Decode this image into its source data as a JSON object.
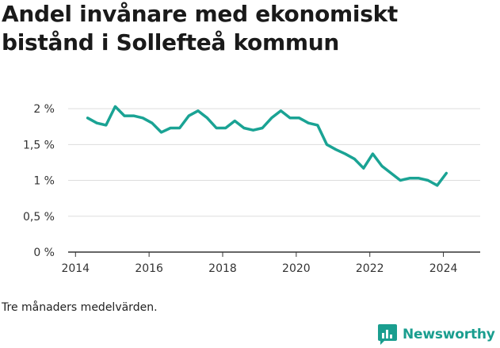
{
  "title": "Andel invånare med ekonomiskt bistånd i Sollefteå kommun",
  "note": "Tre månaders medelvärden.",
  "brand": {
    "name": "Newsworthy",
    "icon": "bar-chart-icon",
    "color": "#1a9e8f"
  },
  "colors": {
    "line": "#1aa394",
    "grid": "#dddddd",
    "axis": "#333333"
  },
  "chart_data": {
    "type": "line",
    "title": "Andel invånare med ekonomiskt bistånd i Sollefteå kommun",
    "xlabel": "",
    "ylabel": "",
    "xlim": [
      2013.8,
      2025.0
    ],
    "ylim": [
      0,
      2.2
    ],
    "x_ticks": [
      2014,
      2016,
      2018,
      2020,
      2022,
      2024
    ],
    "x_tick_labels": [
      "2014",
      "2016",
      "2018",
      "2020",
      "2022",
      "2024"
    ],
    "y_ticks": [
      0,
      0.5,
      1,
      1.5,
      2
    ],
    "y_tick_labels": [
      "0 %",
      "0,5 %",
      "1 %",
      "1,5 %",
      "2 %"
    ],
    "grid": true,
    "series": [
      {
        "x": [
          2014.33,
          2014.58,
          2014.83,
          2015.08,
          2015.33,
          2015.58,
          2015.83,
          2016.08,
          2016.33,
          2016.58,
          2016.83,
          2017.08,
          2017.33,
          2017.58,
          2017.83,
          2018.08,
          2018.33,
          2018.58,
          2018.83,
          2019.08,
          2019.33,
          2019.58,
          2019.83,
          2020.08,
          2020.33,
          2020.58,
          2020.83,
          2021.08,
          2021.33,
          2021.58,
          2021.83,
          2022.08,
          2022.33,
          2022.58,
          2022.83,
          2023.08,
          2023.33,
          2023.58,
          2023.83,
          2024.08
        ],
        "values": [
          1.87,
          1.8,
          1.77,
          2.03,
          1.9,
          1.9,
          1.87,
          1.8,
          1.67,
          1.73,
          1.73,
          1.9,
          1.97,
          1.87,
          1.73,
          1.73,
          1.83,
          1.73,
          1.7,
          1.73,
          1.87,
          1.97,
          1.87,
          1.87,
          1.8,
          1.77,
          1.5,
          1.43,
          1.37,
          1.3,
          1.17,
          1.37,
          1.2,
          1.1,
          1.0,
          1.03,
          1.03,
          1.0,
          0.93,
          1.1
        ]
      }
    ]
  }
}
